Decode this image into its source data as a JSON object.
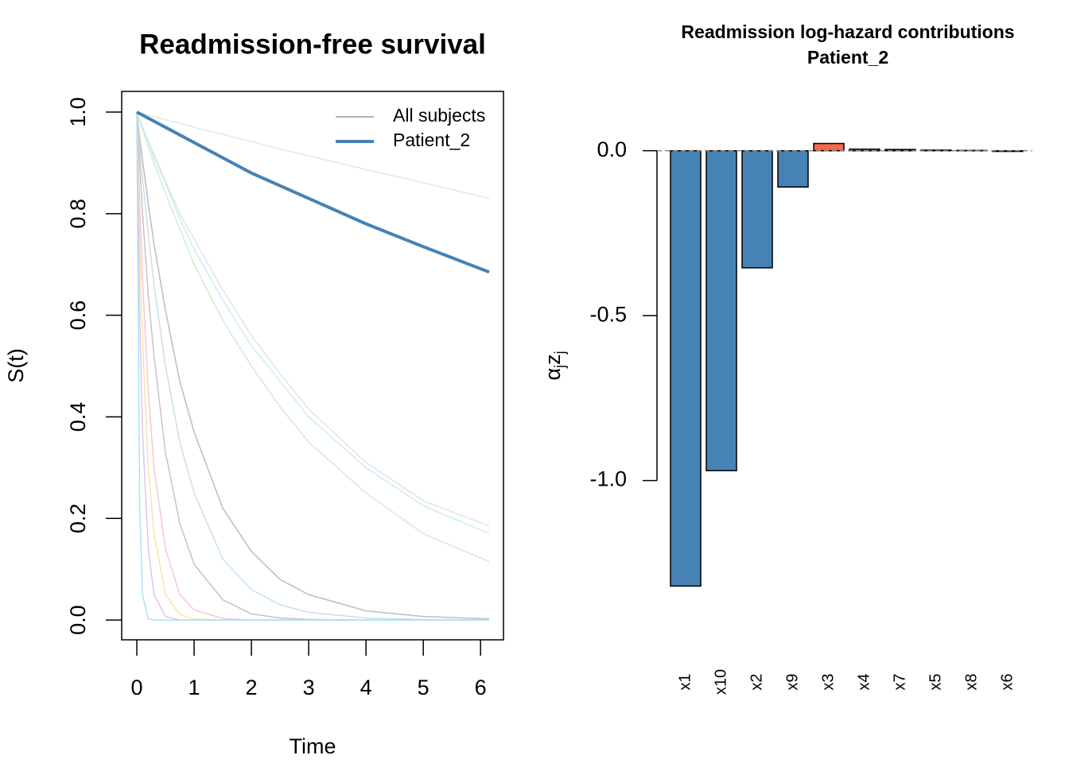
{
  "chart_data": [
    {
      "type": "line",
      "title": "Readmission-free survival",
      "xlabel": "Time",
      "ylabel": "S(t)",
      "x": [
        0,
        0.05,
        0.1,
        0.2,
        0.3,
        0.5,
        0.75,
        1,
        1.5,
        2,
        2.5,
        3,
        4,
        5,
        6.15
      ],
      "xlim": [
        -0.264,
        6.4
      ],
      "ylim": [
        -0.039,
        1.0407
      ],
      "xticks": [
        0,
        1,
        2,
        3,
        4,
        5,
        6
      ],
      "yticks": [
        {
          "value": 0,
          "label": "0.0"
        },
        {
          "value": 0.2,
          "label": "0.2"
        },
        {
          "value": 0.4,
          "label": "0.4"
        },
        {
          "value": 0.6,
          "label": "0.6"
        },
        {
          "value": 0.8,
          "label": "0.8"
        },
        {
          "value": 1,
          "label": "1.0"
        }
      ],
      "legend": "top-right",
      "series": [
        {
          "name": "All subjects",
          "color": "#999999",
          "lines": [
            {
              "color": "#d8f0d4",
              "values": [
                1,
                0.998,
                0.997,
                0.994,
                0.991,
                0.985,
                0.978,
                0.97,
                0.956,
                0.942,
                0.927,
                0.914,
                0.887,
                0.861,
                0.83
              ]
            },
            {
              "color": "#e6e0ea",
              "values": [
                1,
                0.986,
                0.971,
                0.944,
                0.917,
                0.865,
                0.8,
                0.75,
                0.65,
                0.56,
                0.485,
                0.415,
                0.31,
                0.235,
                0.185
              ]
            },
            {
              "color": "#c8eef4",
              "values": [
                1,
                0.985,
                0.97,
                0.94,
                0.91,
                0.86,
                0.79,
                0.73,
                0.63,
                0.54,
                0.47,
                0.4,
                0.3,
                0.225,
                0.17
              ]
            },
            {
              "color": "#d4eccc",
              "values": [
                1,
                0.983,
                0.966,
                0.93,
                0.9,
                0.84,
                0.77,
                0.7,
                0.59,
                0.5,
                0.42,
                0.35,
                0.25,
                0.17,
                0.115
              ]
            },
            {
              "color": "#bdbdbd",
              "values": [
                1,
                0.95,
                0.905,
                0.82,
                0.74,
                0.61,
                0.47,
                0.37,
                0.22,
                0.135,
                0.08,
                0.05,
                0.018,
                0.007,
                0.002
              ]
            },
            {
              "color": "#c6e0f0",
              "values": [
                1,
                0.93,
                0.87,
                0.76,
                0.66,
                0.5,
                0.35,
                0.25,
                0.12,
                0.06,
                0.03,
                0.015,
                0.004,
                0.001,
                0
              ]
            },
            {
              "color": "#c4c4c4",
              "values": [
                1,
                0.9,
                0.8,
                0.64,
                0.52,
                0.33,
                0.19,
                0.11,
                0.04,
                0.012,
                0.004,
                0.001,
                0,
                0,
                0
              ]
            },
            {
              "color": "#f6c8d4",
              "values": [
                1,
                0.82,
                0.67,
                0.45,
                0.3,
                0.14,
                0.05,
                0.02,
                0.003,
                0,
                0,
                0,
                0,
                0,
                0
              ]
            },
            {
              "color": "#f8e4a8",
              "values": [
                1,
                0.74,
                0.55,
                0.3,
                0.17,
                0.05,
                0.011,
                0.002,
                0,
                0,
                0,
                0,
                0,
                0,
                0
              ]
            },
            {
              "color": "#dcc4f0",
              "values": [
                1,
                0.6,
                0.37,
                0.14,
                0.05,
                0.007,
                0,
                0,
                0,
                0,
                0,
                0,
                0,
                0,
                0
              ]
            },
            {
              "color": "#a8e4f4",
              "values": [
                1,
                0.22,
                0.05,
                0.002,
                0,
                0,
                0,
                0,
                0,
                0,
                0,
                0,
                0,
                0,
                0
              ]
            }
          ]
        },
        {
          "name": "Patient_2",
          "color": "#4682b4",
          "values": [
            1,
            0.997,
            0.994,
            0.988,
            0.982,
            0.97,
            0.955,
            0.94,
            0.91,
            0.88,
            0.855,
            0.83,
            0.78,
            0.735,
            0.685
          ]
        }
      ]
    },
    {
      "type": "bar",
      "title": "Readmission log-hazard contributions",
      "subtitle": "Patient_2",
      "ylabel_parts": [
        {
          "text": "α",
          "sub": "j"
        },
        {
          "text": "z",
          "sub": "j"
        }
      ],
      "categories": [
        "x1",
        "x10",
        "x2",
        "x9",
        "x3",
        "x4",
        "x7",
        "x5",
        "x8",
        "x6"
      ],
      "values": [
        -1.32,
        -0.97,
        -0.355,
        -0.11,
        0.022,
        0.005,
        0.004,
        0.002,
        0.001,
        -0.002
      ],
      "color_negative": "#4682b4",
      "color_positive": "#f46a4e",
      "ylim": [
        -1.483,
        0.18
      ],
      "yticks": [
        {
          "value": -1,
          "label": "-1.0"
        },
        {
          "value": -0.5,
          "label": "-0.5"
        },
        {
          "value": 0,
          "label": "0.0"
        }
      ]
    }
  ]
}
